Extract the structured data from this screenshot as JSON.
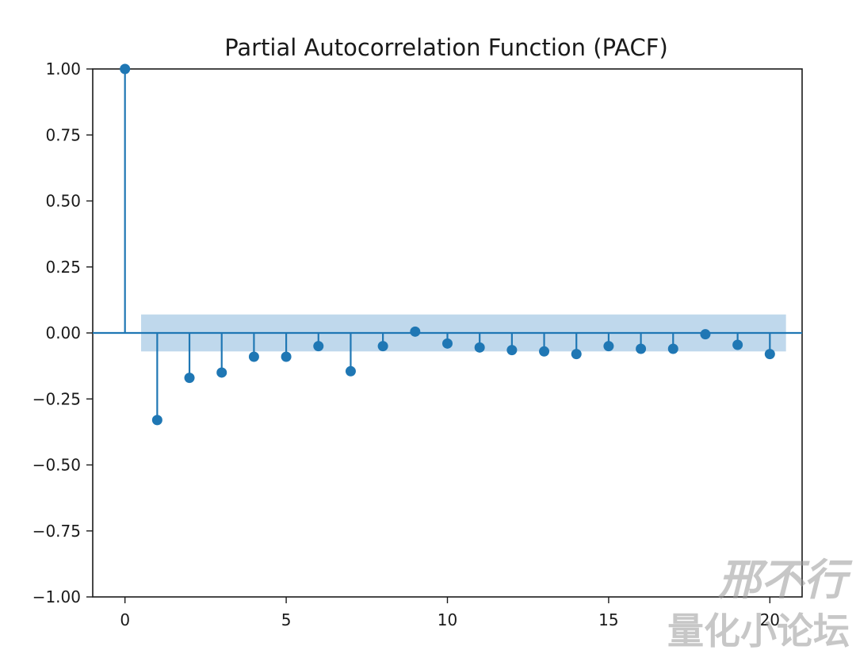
{
  "chart_data": {
    "type": "stem",
    "title": "Partial Autocorrelation Function (PACF)",
    "xlabel": "",
    "ylabel": "",
    "xlim": [
      -1,
      21
    ],
    "ylim": [
      -1.0,
      1.0
    ],
    "x_ticks": [
      0,
      5,
      10,
      15,
      20
    ],
    "x_tick_labels": [
      "0",
      "5",
      "10",
      "15",
      "20"
    ],
    "y_ticks": [
      1.0,
      0.75,
      0.5,
      0.25,
      0.0,
      -0.25,
      -0.5,
      -0.75,
      -1.0
    ],
    "y_tick_labels": [
      "1.00",
      "0.75",
      "0.50",
      "0.25",
      "0.00",
      "−0.25",
      "−0.50",
      "−0.75",
      "−1.00"
    ],
    "grid": false,
    "lags": [
      0,
      1,
      2,
      3,
      4,
      5,
      6,
      7,
      8,
      9,
      10,
      11,
      12,
      13,
      14,
      15,
      16,
      17,
      18,
      19,
      20
    ],
    "values": [
      1.0,
      -0.33,
      -0.17,
      -0.15,
      -0.09,
      -0.09,
      -0.05,
      -0.145,
      -0.05,
      0.005,
      -0.04,
      -0.055,
      -0.065,
      -0.07,
      -0.08,
      -0.05,
      -0.06,
      -0.06,
      -0.005,
      -0.045,
      -0.08
    ],
    "confidence_band": {
      "x_range": [
        0.5,
        20.5
      ],
      "upper": 0.07,
      "lower": -0.07
    },
    "colors": {
      "stem": "#1f77b4",
      "band": "#a9cbe6",
      "axis": "#1a1a1a"
    }
  },
  "watermark": {
    "line1": "邢不行",
    "line2": "量化小论坛"
  }
}
